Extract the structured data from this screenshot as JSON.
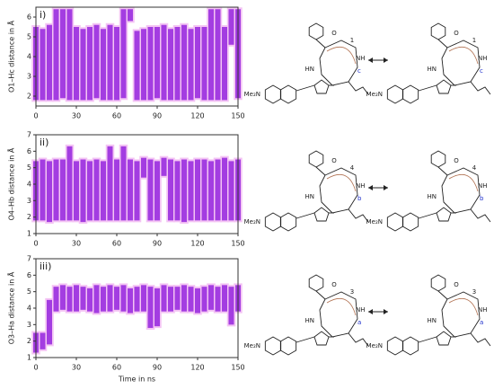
{
  "chart_data": [
    {
      "type": "range",
      "panel_label": "i)",
      "ylabel": "O1–Hc distance in Å",
      "color": "#9b2fe0",
      "halo": "#f4c4f4",
      "x": [
        0,
        5,
        10,
        15,
        20,
        25,
        30,
        35,
        40,
        45,
        50,
        55,
        60,
        65,
        70,
        75,
        80,
        85,
        90,
        95,
        100,
        105,
        110,
        115,
        120,
        125,
        130,
        135,
        140,
        145,
        150
      ],
      "low": [
        1.8,
        1.8,
        1.8,
        1.8,
        1.9,
        1.8,
        1.8,
        1.8,
        1.8,
        1.9,
        1.8,
        1.8,
        1.8,
        1.9,
        5.8,
        1.8,
        1.8,
        1.8,
        1.9,
        1.8,
        1.8,
        1.8,
        1.8,
        1.8,
        1.9,
        1.8,
        1.8,
        1.8,
        1.8,
        4.6,
        1.9
      ],
      "high": [
        5.5,
        5.4,
        5.6,
        6.4,
        6.4,
        6.4,
        5.5,
        5.4,
        5.5,
        5.6,
        5.4,
        5.6,
        5.5,
        6.4,
        6.4,
        5.3,
        5.4,
        5.5,
        5.5,
        5.6,
        5.4,
        5.5,
        5.6,
        5.4,
        5.5,
        5.5,
        6.4,
        6.4,
        5.5,
        6.4,
        6.4
      ],
      "xlim": [
        0,
        150
      ],
      "xticks": [
        0,
        30,
        60,
        90,
        120,
        150
      ],
      "ylim": [
        1.5,
        6.5
      ],
      "yticks": [
        2,
        3,
        4,
        5,
        6
      ]
    },
    {
      "type": "range",
      "panel_label": "ii)",
      "ylabel": "O4–Hb distance in Å",
      "color": "#9b2fe0",
      "halo": "#f4c4f4",
      "x": [
        0,
        5,
        10,
        15,
        20,
        25,
        30,
        35,
        40,
        45,
        50,
        55,
        60,
        65,
        70,
        75,
        80,
        85,
        90,
        95,
        100,
        105,
        110,
        115,
        120,
        125,
        130,
        135,
        140,
        145,
        150
      ],
      "low": [
        1.8,
        1.8,
        1.7,
        1.8,
        1.8,
        1.8,
        1.8,
        1.7,
        1.8,
        1.8,
        1.8,
        1.8,
        1.8,
        1.8,
        1.8,
        1.8,
        4.4,
        1.8,
        1.8,
        4.5,
        1.8,
        1.8,
        1.7,
        1.8,
        1.8,
        1.8,
        1.8,
        1.8,
        1.8,
        1.8,
        1.8
      ],
      "high": [
        5.4,
        5.5,
        5.4,
        5.5,
        5.5,
        6.3,
        5.4,
        5.5,
        5.4,
        5.5,
        5.4,
        6.3,
        5.5,
        6.3,
        5.5,
        5.4,
        5.6,
        5.5,
        5.4,
        5.6,
        5.5,
        5.4,
        5.5,
        5.4,
        5.5,
        5.5,
        5.4,
        5.5,
        5.6,
        5.4,
        5.5
      ],
      "xlim": [
        0,
        150
      ],
      "xticks": [
        0,
        30,
        60,
        90,
        120,
        150
      ],
      "ylim": [
        1,
        7
      ],
      "yticks": [
        1,
        2,
        3,
        4,
        5,
        6,
        7
      ]
    },
    {
      "type": "range",
      "panel_label": "iii)",
      "ylabel": "O3–Ha distance in Å",
      "xlabel": "Time in ns",
      "color": "#9b2fe0",
      "halo": "#f4c4f4",
      "x": [
        0,
        5,
        10,
        15,
        20,
        25,
        30,
        35,
        40,
        45,
        50,
        55,
        60,
        65,
        70,
        75,
        80,
        85,
        90,
        95,
        100,
        105,
        110,
        115,
        120,
        125,
        130,
        135,
        140,
        145,
        150
      ],
      "low": [
        1.3,
        1.5,
        1.8,
        3.8,
        3.9,
        3.8,
        3.8,
        3.9,
        3.8,
        3.7,
        3.8,
        3.8,
        3.9,
        3.8,
        3.7,
        3.8,
        3.8,
        2.8,
        2.9,
        3.8,
        3.8,
        3.9,
        3.8,
        3.8,
        3.7,
        3.8,
        3.9,
        3.8,
        3.8,
        3.0,
        3.8
      ],
      "high": [
        2.5,
        2.5,
        4.5,
        5.3,
        5.4,
        5.3,
        5.4,
        5.3,
        5.2,
        5.4,
        5.3,
        5.4,
        5.3,
        5.4,
        5.2,
        5.3,
        5.4,
        5.3,
        5.2,
        5.4,
        5.3,
        5.3,
        5.4,
        5.3,
        5.2,
        5.3,
        5.4,
        5.3,
        5.4,
        5.3,
        5.4
      ],
      "xlim": [
        0,
        150
      ],
      "xticks": [
        0,
        30,
        60,
        90,
        120,
        150
      ],
      "ylim": [
        1,
        7
      ],
      "yticks": [
        1,
        2,
        3,
        4,
        5,
        6,
        7
      ]
    }
  ],
  "schemes": [
    {
      "left": [
        "Me₂N",
        "NH",
        "HN",
        "O",
        "1",
        "c"
      ],
      "right": [
        "Me₂N",
        "NH",
        "HN",
        "O",
        "1",
        "c"
      ]
    },
    {
      "left": [
        "Me₂N",
        "NH",
        "HN",
        "O",
        "4",
        "b"
      ],
      "right": [
        "Me₂N",
        "NH",
        "HN",
        "O",
        "4",
        "b"
      ]
    },
    {
      "left": [
        "Me₂N",
        "NH",
        "HN",
        "O",
        "3",
        "a"
      ],
      "right": [
        "Me₂N",
        "NH",
        "HN",
        "O",
        "3",
        "a"
      ]
    }
  ]
}
